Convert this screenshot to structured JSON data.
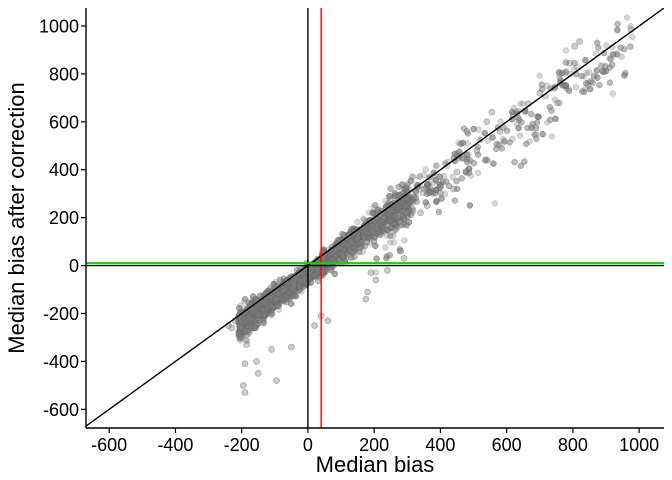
{
  "chart_data": {
    "type": "scatter",
    "title": "",
    "xlabel": "Median bias",
    "ylabel": "Median bias after correction",
    "xlim": [
      -670,
      1075
    ],
    "ylim": [
      -678,
      1075
    ],
    "xticks": [
      -600,
      -400,
      -200,
      0,
      200,
      400,
      600,
      800,
      1000
    ],
    "yticks": [
      -600,
      -400,
      -200,
      0,
      200,
      400,
      600,
      800,
      1000
    ],
    "grid": false,
    "legend": "none",
    "point_color": "#7f7f7f",
    "reference_lines": [
      {
        "kind": "identity",
        "slope": 1,
        "intercept": 0,
        "color": "#000000"
      },
      {
        "kind": "vertical",
        "x": 0,
        "color": "#000000"
      },
      {
        "kind": "vertical",
        "x": 40,
        "color": "#ff0000"
      },
      {
        "kind": "horizontal",
        "y": 10,
        "color": "#00dd00"
      },
      {
        "kind": "horizontal",
        "y": 0,
        "color": "#000000"
      }
    ],
    "cloud": {
      "description_points": "dense band of points close to y = x - 35, spanning x from about -210 to 980",
      "x_range": [
        -210,
        980
      ],
      "main_offset": -35,
      "main_spread": 45
    },
    "notable_points": [
      {
        "x": 975,
        "y": 985
      },
      {
        "x": 820,
        "y": 935
      },
      {
        "x": 805,
        "y": 915
      },
      {
        "x": 790,
        "y": 845
      },
      {
        "x": 760,
        "y": 800
      },
      {
        "x": 745,
        "y": 740
      },
      {
        "x": 700,
        "y": 720
      },
      {
        "x": 665,
        "y": 675
      },
      {
        "x": 620,
        "y": 630
      },
      {
        "x": 580,
        "y": 560
      },
      {
        "x": 555,
        "y": 640
      },
      {
        "x": 540,
        "y": 600
      },
      {
        "x": 510,
        "y": 480
      },
      {
        "x": 480,
        "y": 560
      },
      {
        "x": 470,
        "y": 450
      },
      {
        "x": 450,
        "y": 390
      },
      {
        "x": 440,
        "y": 320
      },
      {
        "x": 400,
        "y": 330
      },
      {
        "x": 360,
        "y": 250
      },
      {
        "x": 340,
        "y": 220
      },
      {
        "x": 300,
        "y": 220
      },
      {
        "x": 290,
        "y": 30
      },
      {
        "x": 280,
        "y": 60
      },
      {
        "x": 240,
        "y": -20
      },
      {
        "x": 205,
        "y": -60
      },
      {
        "x": 190,
        "y": -30
      },
      {
        "x": 180,
        "y": -110
      },
      {
        "x": 175,
        "y": -140
      },
      {
        "x": 60,
        "y": -230
      },
      {
        "x": 40,
        "y": -210
      },
      {
        "x": 20,
        "y": -250
      },
      {
        "x": -50,
        "y": -340
      },
      {
        "x": -95,
        "y": -480
      },
      {
        "x": -110,
        "y": -350
      },
      {
        "x": -150,
        "y": -450
      },
      {
        "x": -155,
        "y": -400
      },
      {
        "x": -185,
        "y": -330
      },
      {
        "x": -190,
        "y": -410
      },
      {
        "x": -195,
        "y": -500
      },
      {
        "x": -190,
        "y": -530
      },
      {
        "x": -205,
        "y": -300
      },
      {
        "x": -220,
        "y": -230
      },
      {
        "x": -230,
        "y": -260
      },
      {
        "x": -240,
        "y": -250
      }
    ]
  }
}
